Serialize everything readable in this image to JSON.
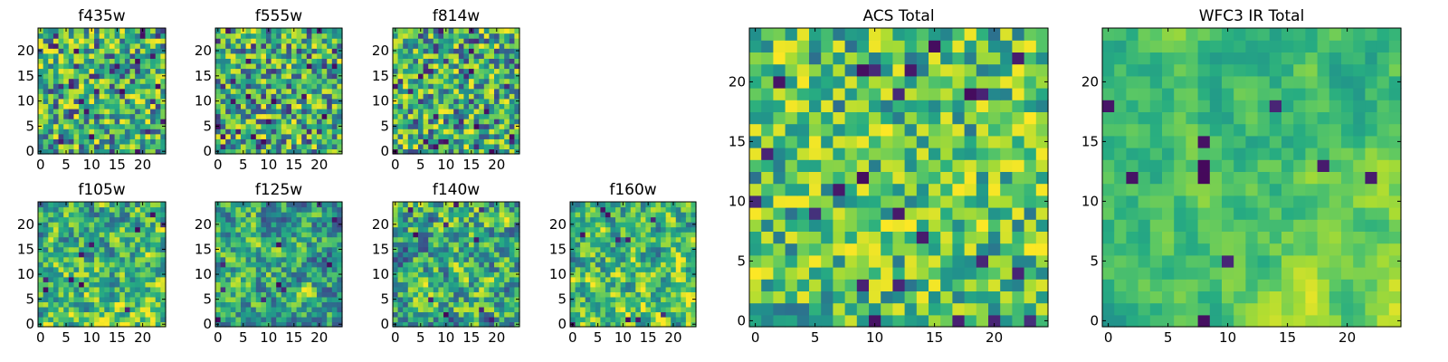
{
  "figure_description": "Grid of viridis heatmaps showing 25x25 pixel cutouts for individual HST filters plus ACS and WFC3 IR totals",
  "chart_data": [
    {
      "type": "heatmap",
      "title": "f435w",
      "colormap": "viridis",
      "xlim": [
        0,
        24
      ],
      "ylim": [
        0,
        24
      ],
      "xticks": [
        "0",
        "5",
        "10",
        "15",
        "20"
      ],
      "yticks": [
        "0",
        "5",
        "10",
        "15",
        "20"
      ],
      "grid": false,
      "seed": 11,
      "smooth": 0,
      "value_range": [
        0,
        1
      ],
      "bias": "none"
    },
    {
      "type": "heatmap",
      "title": "f555w",
      "colormap": "viridis",
      "xlim": [
        0,
        24
      ],
      "ylim": [
        0,
        24
      ],
      "xticks": [
        "0",
        "5",
        "10",
        "15",
        "20"
      ],
      "yticks": [
        "0",
        "5",
        "10",
        "15",
        "20"
      ],
      "grid": false,
      "seed": 23,
      "smooth": 0,
      "value_range": [
        0,
        1
      ],
      "bias": "none"
    },
    {
      "type": "heatmap",
      "title": "f814w",
      "colormap": "viridis",
      "xlim": [
        0,
        24
      ],
      "ylim": [
        0,
        24
      ],
      "xticks": [
        "0",
        "5",
        "10",
        "15",
        "20"
      ],
      "yticks": [
        "0",
        "5",
        "10",
        "15",
        "20"
      ],
      "grid": false,
      "seed": 37,
      "smooth": 0,
      "value_range": [
        0,
        1
      ],
      "bias": "none"
    },
    {
      "type": "heatmap",
      "title": "f105w",
      "colormap": "viridis",
      "xlim": [
        0,
        24
      ],
      "ylim": [
        0,
        24
      ],
      "xticks": [
        "0",
        "5",
        "10",
        "15",
        "20"
      ],
      "yticks": [
        "0",
        "5",
        "10",
        "15",
        "20"
      ],
      "grid": false,
      "seed": 41,
      "smooth": 1,
      "value_range": [
        0,
        1
      ],
      "bias": "low-bright"
    },
    {
      "type": "heatmap",
      "title": "f125w",
      "colormap": "viridis",
      "xlim": [
        0,
        24
      ],
      "ylim": [
        0,
        24
      ],
      "xticks": [
        "0",
        "5",
        "10",
        "15",
        "20"
      ],
      "yticks": [
        "0",
        "5",
        "10",
        "15",
        "20"
      ],
      "grid": false,
      "seed": 53,
      "smooth": 1,
      "value_range": [
        0,
        1
      ],
      "bias": "none"
    },
    {
      "type": "heatmap",
      "title": "f140w",
      "colormap": "viridis",
      "xlim": [
        0,
        24
      ],
      "ylim": [
        0,
        24
      ],
      "xticks": [
        "0",
        "5",
        "10",
        "15",
        "20"
      ],
      "yticks": [
        "0",
        "5",
        "10",
        "15",
        "20"
      ],
      "grid": false,
      "seed": 67,
      "smooth": 1,
      "value_range": [
        0,
        1
      ],
      "bias": "none"
    },
    {
      "type": "heatmap",
      "title": "f160w",
      "colormap": "viridis",
      "xlim": [
        0,
        24
      ],
      "ylim": [
        0,
        24
      ],
      "xticks": [
        "0",
        "5",
        "10",
        "15",
        "20"
      ],
      "yticks": [
        "0",
        "5",
        "10",
        "15",
        "20"
      ],
      "grid": false,
      "seed": 79,
      "smooth": 1,
      "value_range": [
        0,
        1
      ],
      "bias": "low-bright"
    },
    {
      "type": "heatmap",
      "title": "ACS Total",
      "colormap": "viridis",
      "xlim": [
        0,
        24
      ],
      "ylim": [
        0,
        24
      ],
      "xticks": [
        "0",
        "5",
        "10",
        "15",
        "20"
      ],
      "yticks": [
        "0",
        "5",
        "10",
        "15",
        "20"
      ],
      "grid": false,
      "seed": 97,
      "smooth": 0,
      "value_range": [
        0,
        1
      ],
      "bias": "high"
    },
    {
      "type": "heatmap",
      "title": "WFC3 IR Total",
      "colormap": "viridis",
      "xlim": [
        0,
        24
      ],
      "ylim": [
        0,
        24
      ],
      "xticks": [
        "0",
        "5",
        "10",
        "15",
        "20"
      ],
      "yticks": [
        "0",
        "5",
        "10",
        "15",
        "20"
      ],
      "grid": false,
      "seed": 131,
      "smooth": 2,
      "value_range": [
        0,
        1
      ],
      "bias": "bottom-right-bright"
    }
  ]
}
